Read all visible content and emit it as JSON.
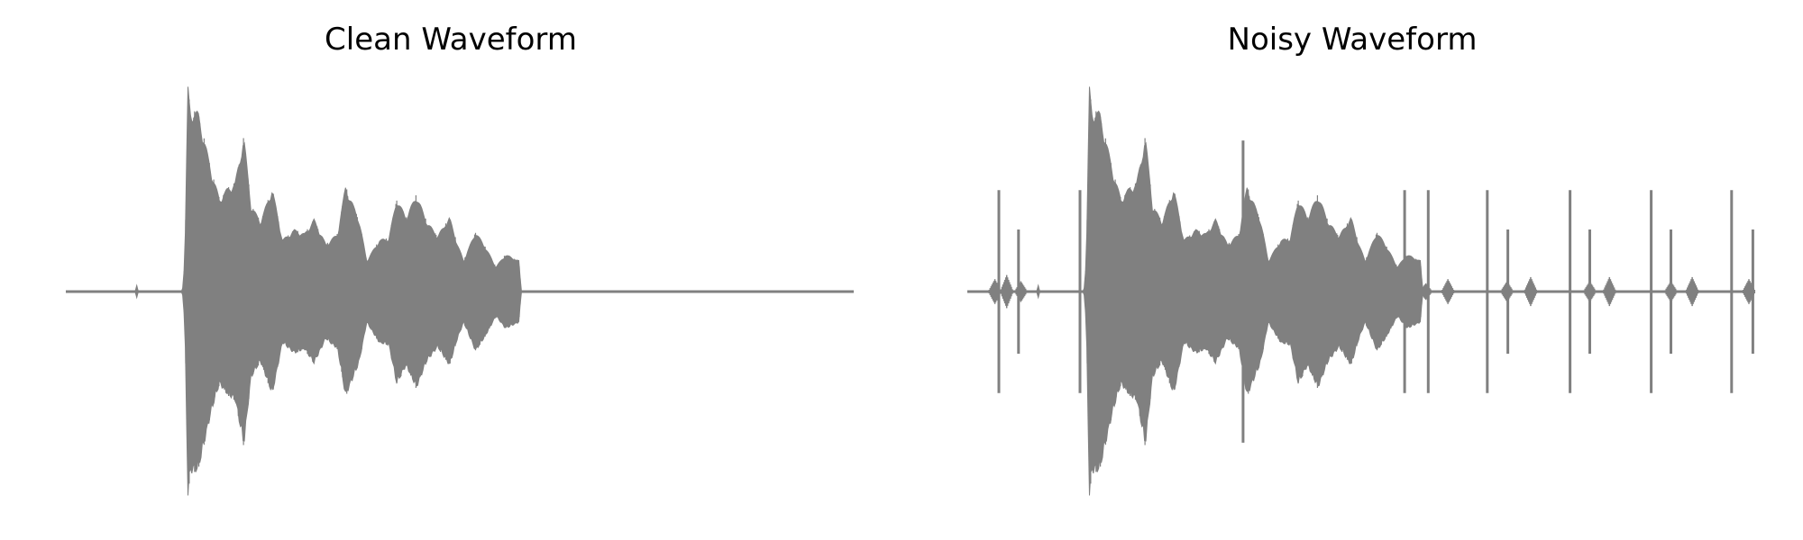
{
  "chart_data": [
    {
      "type": "line",
      "title": "Clean Waveform",
      "xlabel": "",
      "ylabel": "",
      "axes_visible": false,
      "grid": false,
      "legend": "none",
      "line_color": "#808080",
      "x_range": [
        0,
        1
      ],
      "ylim": [
        -1,
        1
      ],
      "series": [
        {
          "t": [
            0.0,
            0.088,
            0.09,
            0.092,
            0.148,
            0.151,
            0.155,
            0.158,
            0.168,
            0.175,
            0.185,
            0.195,
            0.205,
            0.215,
            0.226,
            0.235,
            0.247,
            0.262,
            0.275,
            0.29,
            0.303,
            0.315,
            0.33,
            0.345,
            0.355,
            0.372,
            0.382,
            0.398,
            0.41,
            0.42,
            0.432,
            0.445,
            0.458,
            0.472,
            0.487,
            0.497,
            0.505,
            0.52,
            0.532,
            0.546,
            0.558,
            0.575,
            0.578,
            1.0
          ],
          "amp": [
            0.0,
            0.0,
            0.03,
            0.0,
            0.0,
            0.15,
            0.99,
            0.88,
            0.87,
            0.75,
            0.58,
            0.45,
            0.5,
            0.53,
            0.75,
            0.42,
            0.34,
            0.5,
            0.25,
            0.3,
            0.28,
            0.35,
            0.23,
            0.28,
            0.51,
            0.35,
            0.15,
            0.25,
            0.26,
            0.45,
            0.36,
            0.47,
            0.34,
            0.27,
            0.36,
            0.23,
            0.15,
            0.29,
            0.22,
            0.12,
            0.18,
            0.15,
            0.0,
            0.0
          ]
        }
      ]
    },
    {
      "type": "line",
      "title": "Noisy Waveform",
      "xlabel": "",
      "ylabel": "",
      "axes_visible": false,
      "grid": false,
      "legend": "none",
      "line_color": "#808080",
      "x_range": [
        0,
        1
      ],
      "ylim": [
        -1,
        1
      ],
      "series": [
        {
          "base_signal": "Clean Waveform",
          "spikes": [
            {
              "t": 0.04,
              "amp": 0.49
            },
            {
              "t": 0.065,
              "amp": 0.3
            },
            {
              "t": 0.143,
              "amp": 0.49
            },
            {
              "t": 0.35,
              "amp": 0.73
            },
            {
              "t": 0.555,
              "amp": 0.49
            },
            {
              "t": 0.585,
              "amp": 0.49
            },
            {
              "t": 0.66,
              "amp": 0.49
            },
            {
              "t": 0.686,
              "amp": 0.3
            },
            {
              "t": 0.765,
              "amp": 0.49
            },
            {
              "t": 0.79,
              "amp": 0.3
            },
            {
              "t": 0.868,
              "amp": 0.49
            },
            {
              "t": 0.893,
              "amp": 0.3
            },
            {
              "t": 0.97,
              "amp": 0.49
            },
            {
              "t": 0.997,
              "amp": 0.3
            }
          ],
          "bursts": [
            {
              "t": 0.035,
              "amp": 0.06
            },
            {
              "t": 0.05,
              "amp": 0.08
            },
            {
              "t": 0.068,
              "amp": 0.05
            },
            {
              "t": 0.582,
              "amp": 0.04
            },
            {
              "t": 0.61,
              "amp": 0.06
            },
            {
              "t": 0.685,
              "amp": 0.05
            },
            {
              "t": 0.715,
              "amp": 0.07
            },
            {
              "t": 0.79,
              "amp": 0.05
            },
            {
              "t": 0.815,
              "amp": 0.07
            },
            {
              "t": 0.893,
              "amp": 0.05
            },
            {
              "t": 0.92,
              "amp": 0.07
            },
            {
              "t": 0.992,
              "amp": 0.06
            }
          ]
        }
      ]
    }
  ]
}
